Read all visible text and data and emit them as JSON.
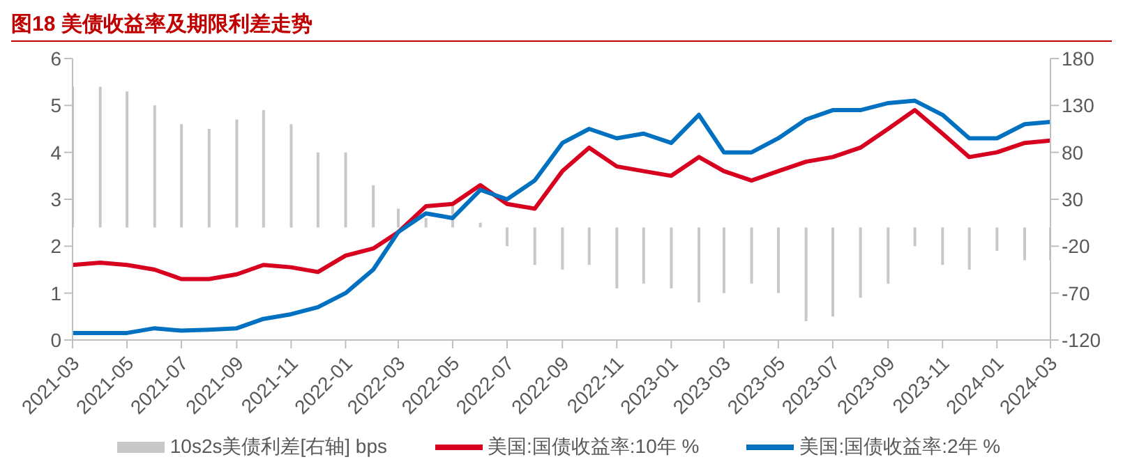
{
  "chart_data": {
    "type": "line",
    "title": "图18  美债收益率及期限利差走势",
    "x": [
      "2021-03",
      "2021-04",
      "2021-05",
      "2021-06",
      "2021-07",
      "2021-08",
      "2021-09",
      "2021-10",
      "2021-11",
      "2021-12",
      "2022-01",
      "2022-02",
      "2022-03",
      "2022-04",
      "2022-05",
      "2022-06",
      "2022-07",
      "2022-08",
      "2022-09",
      "2022-10",
      "2022-11",
      "2022-12",
      "2023-01",
      "2023-02",
      "2023-03",
      "2023-04",
      "2023-05",
      "2023-06",
      "2023-07",
      "2023-08",
      "2023-09",
      "2023-10",
      "2023-11",
      "2023-12",
      "2024-01",
      "2024-02",
      "2024-03"
    ],
    "series": [
      {
        "name": "10s2s美债利差[右轴] bps",
        "type": "bar",
        "axis": "y2",
        "color": "#c8c8c8",
        "values": [
          150,
          150,
          145,
          130,
          110,
          105,
          115,
          125,
          110,
          80,
          80,
          45,
          20,
          10,
          25,
          5,
          -20,
          -40,
          -45,
          -40,
          -65,
          -60,
          -65,
          -80,
          -70,
          -60,
          -70,
          -100,
          -95,
          -75,
          -60,
          -20,
          -40,
          -45,
          -25,
          -35,
          -35
        ]
      },
      {
        "name": "美国:国债收益率:10年 %",
        "color": "#d7001f",
        "values": [
          1.6,
          1.65,
          1.6,
          1.5,
          1.3,
          1.3,
          1.4,
          1.6,
          1.55,
          1.45,
          1.8,
          1.95,
          2.3,
          2.85,
          2.9,
          3.3,
          2.9,
          2.8,
          3.6,
          4.1,
          3.7,
          3.6,
          3.5,
          3.9,
          3.6,
          3.4,
          3.6,
          3.8,
          3.9,
          4.1,
          4.5,
          4.9,
          4.4,
          3.9,
          4.0,
          4.2,
          4.25
        ]
      },
      {
        "name": "美国:国债收益率:2年 %",
        "color": "#0070c0",
        "values": [
          0.15,
          0.15,
          0.15,
          0.25,
          0.2,
          0.22,
          0.25,
          0.45,
          0.55,
          0.7,
          1.0,
          1.5,
          2.3,
          2.7,
          2.6,
          3.2,
          3.0,
          3.4,
          4.2,
          4.5,
          4.3,
          4.4,
          4.2,
          4.8,
          4.0,
          4.0,
          4.3,
          4.7,
          4.9,
          4.9,
          5.05,
          5.1,
          4.8,
          4.3,
          4.3,
          4.6,
          4.65
        ]
      }
    ],
    "xlim": [
      "2021-03",
      "2024-03"
    ],
    "xticks": [
      "2021-03",
      "2021-05",
      "2021-07",
      "2021-09",
      "2021-11",
      "2022-01",
      "2022-03",
      "2022-05",
      "2022-07",
      "2022-09",
      "2022-11",
      "2023-01",
      "2023-03",
      "2023-05",
      "2023-07",
      "2023-09",
      "2023-11",
      "2024-01",
      "2024-03"
    ],
    "ylim": [
      0,
      6
    ],
    "yticks": [
      0,
      1,
      2,
      3,
      4,
      5,
      6
    ],
    "y2lim": [
      -120,
      180
    ],
    "y2ticks": [
      -120,
      -70,
      -20,
      30,
      80,
      130,
      180
    ],
    "legend": "bottom",
    "grid": false
  }
}
